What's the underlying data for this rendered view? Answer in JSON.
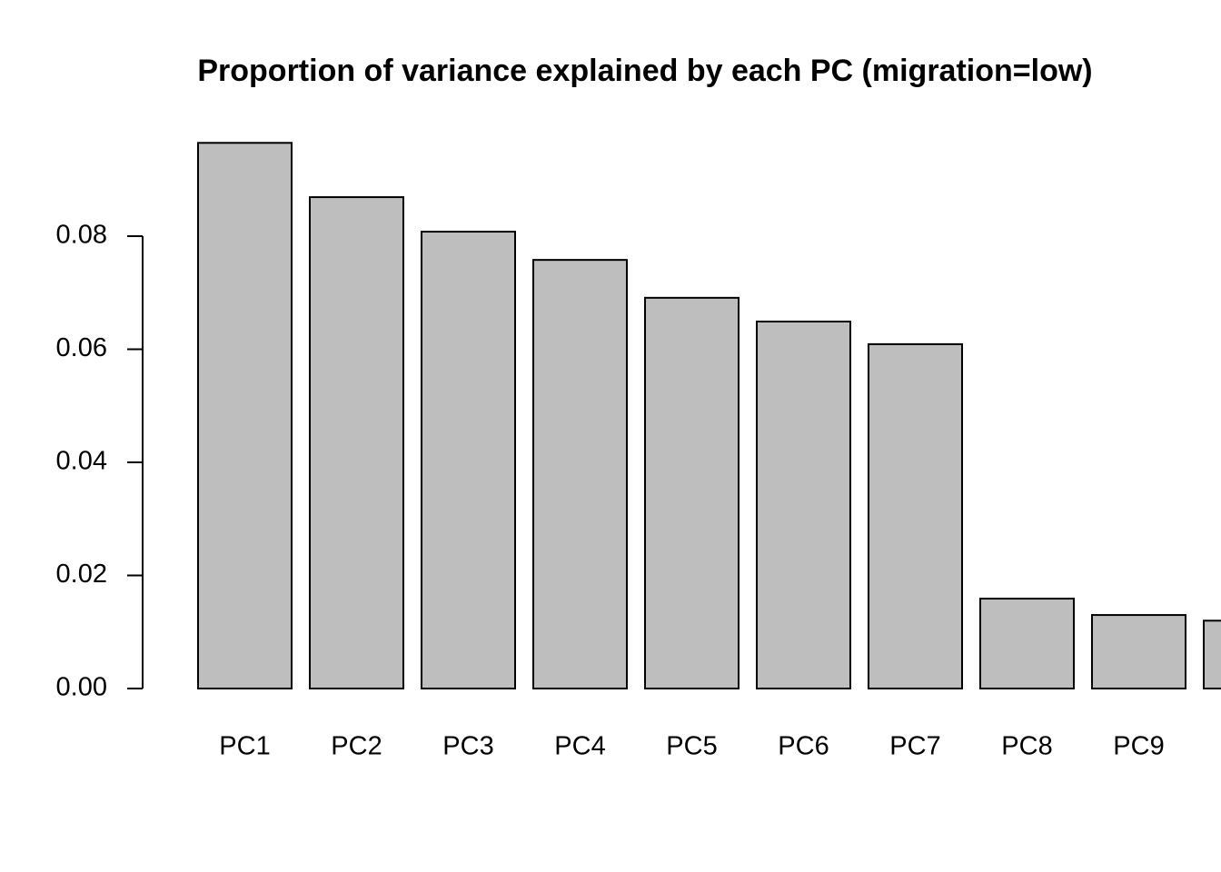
{
  "chart_data": {
    "type": "bar",
    "title": "Proportion of variance explained by each PC (migration=low)",
    "categories": [
      "PC1",
      "PC2",
      "PC3",
      "PC4",
      "PC5",
      "PC6",
      "PC7",
      "PC8",
      "PC9",
      null
    ],
    "values": [
      0.0965,
      0.0869,
      0.0808,
      0.0758,
      0.0691,
      0.0649,
      0.0609,
      0.0159,
      0.013,
      0.012
    ],
    "color": "#bebebe",
    "ylim": [
      0,
      0.1
    ],
    "yticks": [
      {
        "value": 0,
        "label": "0.00"
      },
      {
        "value": 0.02,
        "label": "0.02"
      },
      {
        "value": 0.04,
        "label": "0.04"
      },
      {
        "value": 0.06,
        "label": "0.06"
      },
      {
        "value": 0.08,
        "label": "0.08"
      }
    ],
    "grid": false
  }
}
